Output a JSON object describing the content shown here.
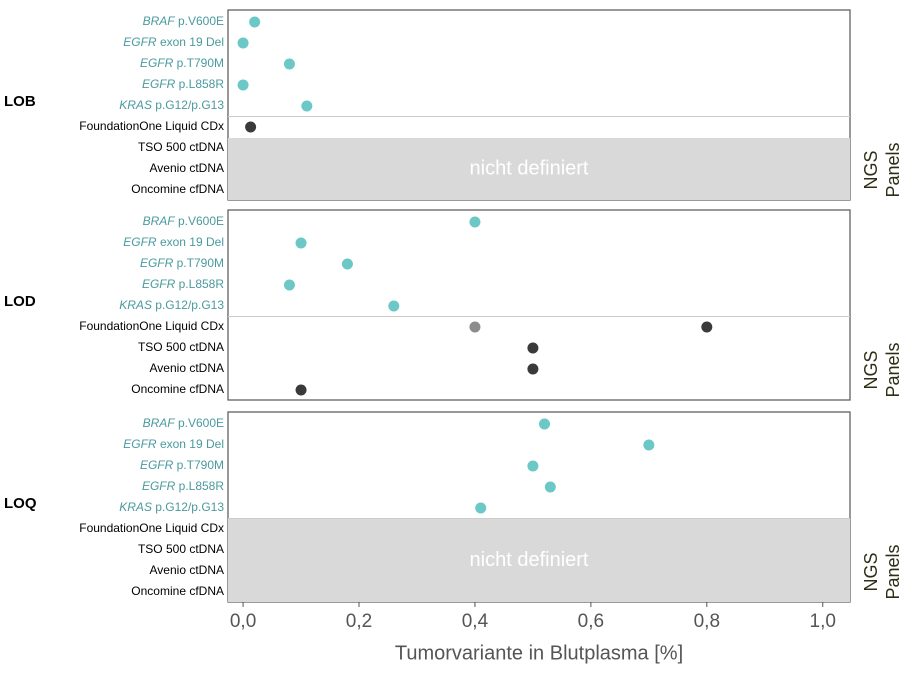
{
  "chart_data": [
    {
      "type": "dot",
      "panel_label": "LOB",
      "variant_rows": [
        "BRAF p.V600E",
        "EGFR exon 19 Del",
        "EGFR p.T790M",
        "EGFR p.L858R",
        "KRAS p.G12/p.G13"
      ],
      "panel_rows": [
        "FoundationOne Liquid CDx",
        "TSO 500 ctDNA",
        "Avenio ctDNA",
        "Oncomine cfDNA"
      ],
      "series": [
        {
          "rows": "variant_rows",
          "color": "#6cc7c7",
          "values": [
            0.02,
            0.0,
            0.08,
            0.0,
            0.11
          ]
        },
        {
          "rows": "panel_rows",
          "color": "#3a3a3a",
          "values": [
            0.013,
            null,
            null,
            null
          ]
        }
      ],
      "annotation": "nicht definiert",
      "side_label": [
        "NGS",
        "Panels"
      ],
      "xlim": [
        -0.026,
        1.047
      ]
    },
    {
      "type": "dot",
      "panel_label": "LOD",
      "variant_rows": [
        "BRAF p.V600E",
        "EGFR exon 19 Del",
        "EGFR p.T790M",
        "EGFR p.L858R",
        "KRAS p.G12/p.G13"
      ],
      "panel_rows": [
        "FoundationOne Liquid CDx",
        "TSO 500 ctDNA",
        "Avenio ctDNA",
        "Oncomine cfDNA"
      ],
      "series": [
        {
          "rows": "variant_rows",
          "color": "#6cc7c7",
          "values": [
            0.4,
            0.1,
            0.18,
            0.08,
            0.26
          ]
        },
        {
          "rows": "panel_rows",
          "color": "#3a3a3a",
          "values": [
            0.8,
            0.5,
            0.5,
            0.1
          ]
        },
        {
          "rows": "panel_rows",
          "color": "#8c8c8c",
          "values": [
            0.4,
            null,
            null,
            null
          ]
        }
      ],
      "side_label": [
        "NGS",
        "Panels"
      ],
      "xlim": [
        -0.026,
        1.047
      ]
    },
    {
      "type": "dot",
      "panel_label": "LOQ",
      "variant_rows": [
        "BRAF p.V600E",
        "EGFR exon 19 Del",
        "EGFR p.T790M",
        "EGFR p.L858R",
        "KRAS p.G12/p.G13"
      ],
      "panel_rows": [
        "FoundationOne Liquid CDx",
        "TSO 500 ctDNA",
        "Avenio ctDNA",
        "Oncomine cfDNA"
      ],
      "series": [
        {
          "rows": "variant_rows",
          "color": "#6cc7c7",
          "values": [
            0.52,
            0.7,
            0.5,
            0.53,
            0.41
          ]
        },
        {
          "rows": "panel_rows",
          "color": "#3a3a3a",
          "values": [
            null,
            null,
            null,
            null
          ]
        }
      ],
      "annotation": "nicht definiert",
      "side_label": [
        "NGS",
        "Panels"
      ],
      "xlim": [
        -0.026,
        1.047
      ],
      "xticks": [
        {
          "value": 0,
          "label": "0,0"
        },
        {
          "value": 0.2,
          "label": "0,2"
        },
        {
          "value": 0.4,
          "label": "0,4"
        },
        {
          "value": 0.6,
          "label": "0,6"
        },
        {
          "value": 0.8,
          "label": "0,8"
        },
        {
          "value": 1.0,
          "label": "1,0"
        }
      ],
      "xlabel": "Tumorvariante in Blutplasma [%]"
    }
  ]
}
